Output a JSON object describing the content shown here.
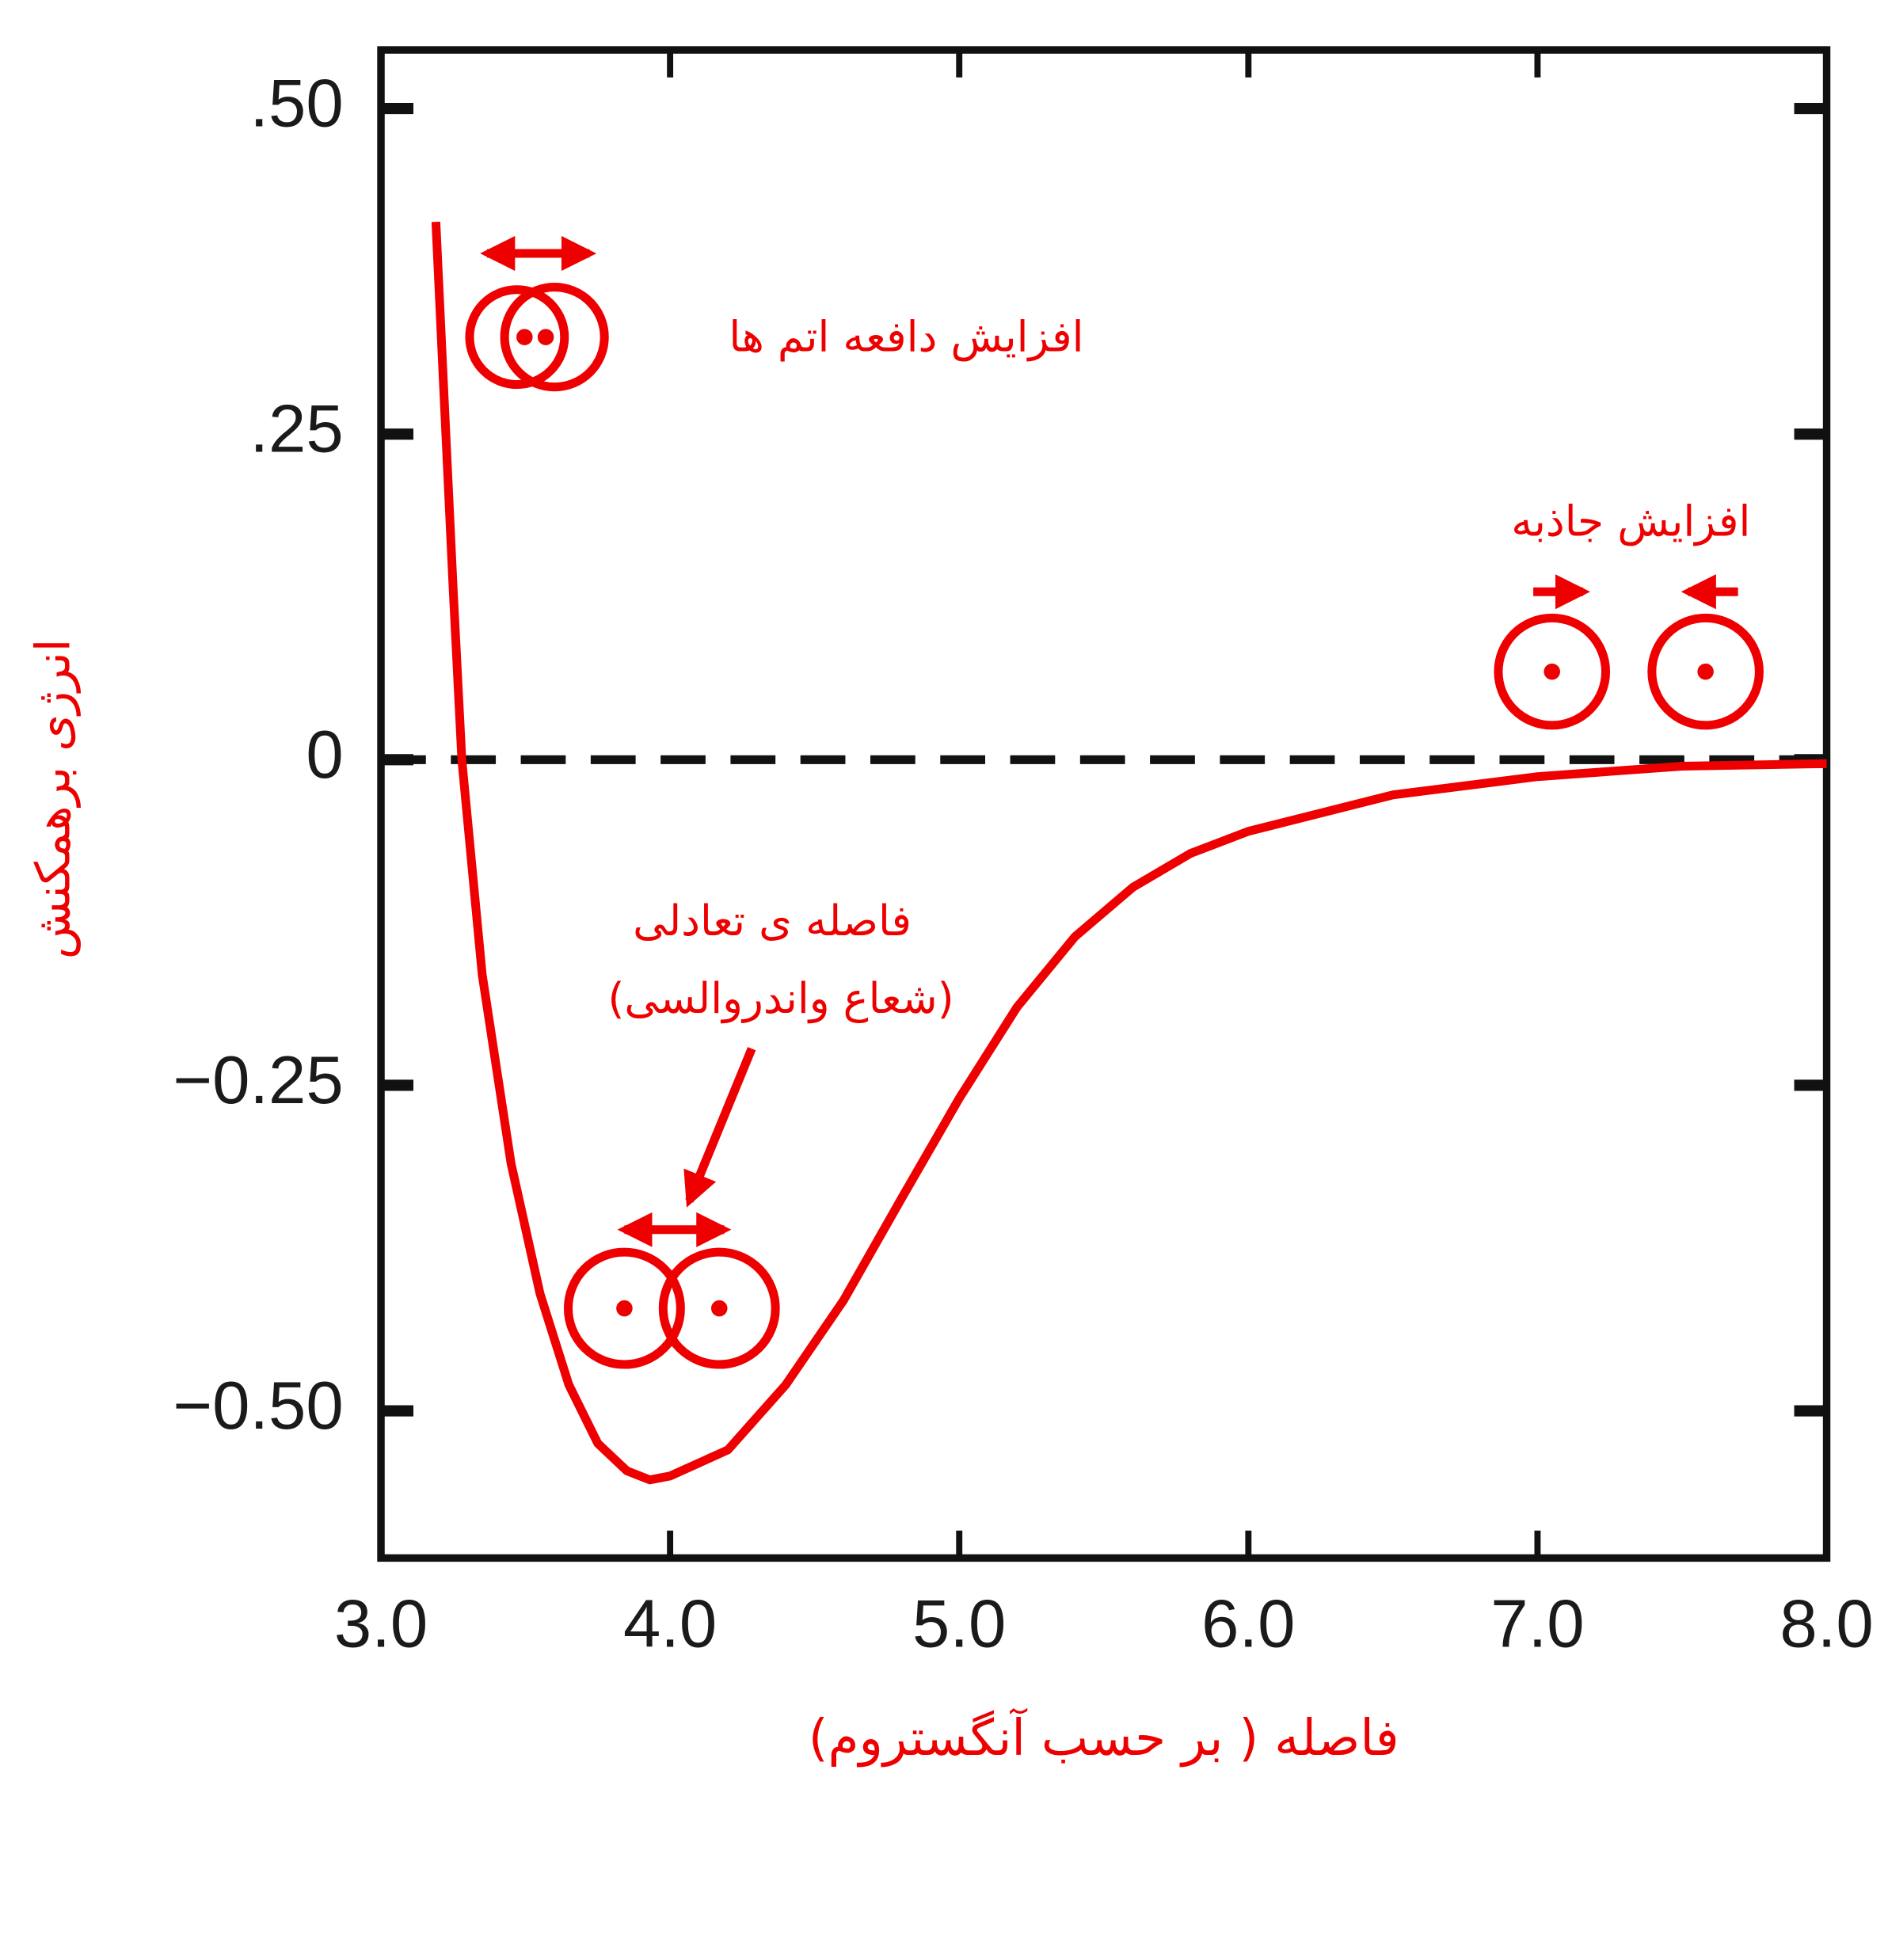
{
  "chart_data": {
    "type": "line",
    "x_label": "فاصله ( بر حسب آنگستروم)",
    "y_label": "انرژی برهمکنش",
    "x": [
      3.19,
      3.22,
      3.25,
      3.28,
      3.35,
      3.45,
      3.55,
      3.65,
      3.75,
      3.85,
      3.93,
      4.0,
      4.2,
      4.4,
      4.6,
      4.8,
      5.0,
      5.2,
      5.4,
      5.6,
      5.8,
      6.0,
      6.5,
      7.0,
      7.5,
      8.0
    ],
    "values": [
      0.413,
      0.27,
      0.13,
      0.0,
      -0.165,
      -0.31,
      -0.41,
      -0.48,
      -0.525,
      -0.546,
      -0.553,
      -0.55,
      -0.53,
      -0.48,
      -0.415,
      -0.337,
      -0.26,
      -0.19,
      -0.136,
      -0.098,
      -0.072,
      -0.055,
      -0.027,
      -0.013,
      -0.005,
      -0.003
    ],
    "color": "#ee0000",
    "xlim": [
      3,
      8
    ],
    "ylim": [
      -0.613,
      0.545
    ],
    "xticks": [
      {
        "value": 3,
        "label": "3.0"
      },
      {
        "value": 4,
        "label": "4.0"
      },
      {
        "value": 5,
        "label": "5.0"
      },
      {
        "value": 6,
        "label": "6.0"
      },
      {
        "value": 7,
        "label": "7.0"
      },
      {
        "value": 8,
        "label": "8.0"
      }
    ],
    "yticks": [
      {
        "value": 0.5,
        "label": ".50"
      },
      {
        "value": 0.25,
        "label": ".25"
      },
      0,
      {
        "value": -0.25,
        "label": "−0.25"
      },
      {
        "value": -0.5,
        "label": "−0.50"
      }
    ],
    "hline": 0,
    "annotations": [
      "افزایش دافعه اتم ها",
      "افزایش جاذبه",
      "فاصله ی تعادلی",
      "(شعاع واندروالسی)"
    ]
  }
}
